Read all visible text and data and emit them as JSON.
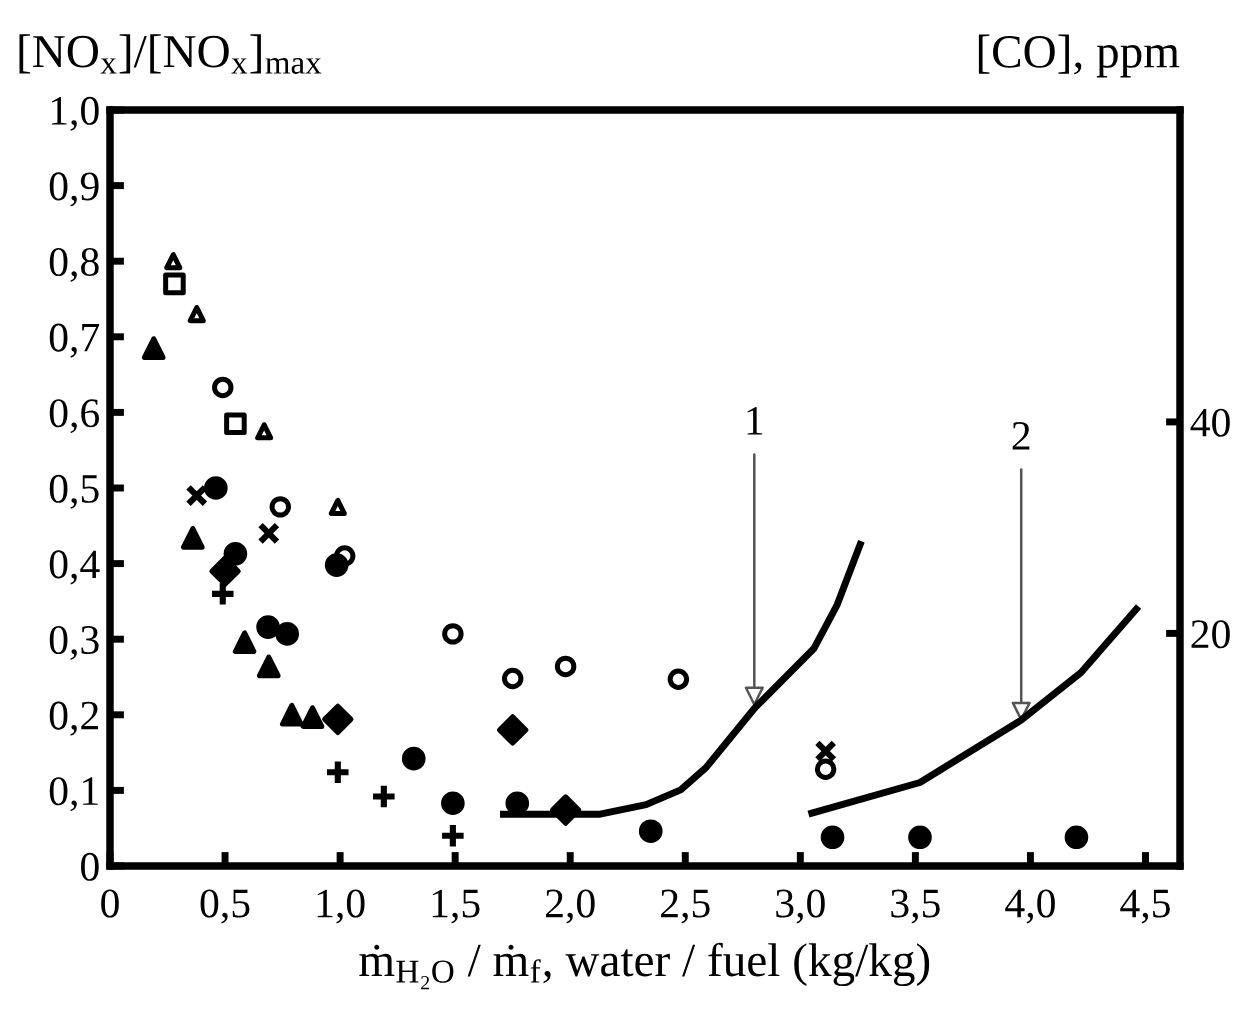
{
  "chart_data": {
    "type": "scatter",
    "ylabel": "[NO$_{x}$]/[NO$_{x}$]$_{max}$",
    "y2label": "[CO], ppm",
    "xlabel": "ṁ$_{H₂O}$ / ṁ$_{f}$, water / fuel (kg/kg)",
    "xlim": [
      0,
      4.65
    ],
    "ylim": [
      0,
      1.0
    ],
    "y2lim": [
      -2,
      69.5
    ],
    "xticks": [
      0,
      {
        "value": 0.5,
        "label": "0,5"
      },
      {
        "value": 1.0,
        "label": "1,0"
      },
      {
        "value": 1.5,
        "label": "1,5"
      },
      {
        "value": 2.0,
        "label": "2,0"
      },
      {
        "value": 2.5,
        "label": "2,5"
      },
      {
        "value": 3.0,
        "label": "3,0"
      },
      {
        "value": 3.5,
        "label": "3,5"
      },
      {
        "value": 4.0,
        "label": "4,0"
      },
      {
        "value": 4.5,
        "label": "4,5"
      }
    ],
    "yticks": [
      0,
      {
        "value": 0.1,
        "label": "0,1"
      },
      {
        "value": 0.2,
        "label": "0,2"
      },
      {
        "value": 0.3,
        "label": "0,3"
      },
      {
        "value": 0.4,
        "label": "0,4"
      },
      {
        "value": 0.5,
        "label": "0,5"
      },
      {
        "value": 0.6,
        "label": "0,6"
      },
      {
        "value": 0.7,
        "label": "0,7"
      },
      {
        "value": 0.8,
        "label": "0,8"
      },
      {
        "value": 0.9,
        "label": "0,9"
      },
      {
        "value": 1.0,
        "label": "1,0"
      }
    ],
    "y2ticks": [
      20,
      40
    ],
    "grid": false,
    "legend": false,
    "series": [
      {
        "marker": "triangle",
        "color": "#000000",
        "x": [
          0.275,
          0.377,
          0.67,
          0.99
        ],
        "values": [
          0.8,
          0.73,
          0.575,
          0.475
        ]
      },
      {
        "marker": "square",
        "color": "#000000",
        "x": [
          0.28,
          0.545
        ],
        "values": [
          0.77,
          0.585
        ]
      },
      {
        "marker": "triangle",
        "color": "#000000",
        "x": [
          0.19,
          0.36,
          0.585,
          0.69,
          0.79,
          0.88
        ],
        "values": [
          0.685,
          0.434,
          0.296,
          0.264,
          0.2,
          0.197
        ]
      },
      {
        "marker": "cross",
        "color": "#000000",
        "x": [
          0.377,
          0.69,
          3.11
        ],
        "values": [
          0.49,
          0.44,
          0.152
        ]
      },
      {
        "marker": "circle",
        "color": "#000000",
        "x": [
          0.49,
          0.74,
          1.02,
          1.49,
          1.75,
          1.98,
          2.47,
          3.11
        ],
        "values": [
          0.633,
          0.475,
          0.41,
          0.307,
          0.248,
          0.264,
          0.247,
          0.128
        ]
      },
      {
        "marker": "circle",
        "color": "#000000",
        "x": [
          0.46,
          0.545,
          0.687,
          0.77,
          0.985,
          1.32,
          1.49,
          1.77,
          2.35,
          3.14,
          3.52,
          4.2
        ],
        "values": [
          0.5,
          0.413,
          0.316,
          0.307,
          0.398,
          0.142,
          0.083,
          0.083,
          0.046,
          0.038,
          0.038,
          0.038
        ]
      },
      {
        "marker": "diamond",
        "color": "#000000",
        "x": [
          0.5,
          0.99,
          1.75,
          1.98
        ],
        "values": [
          0.39,
          0.194,
          0.18,
          0.074
        ]
      },
      {
        "marker": "cross",
        "color": "#000000",
        "x": [
          0.49,
          0.99,
          1.19,
          1.49
        ],
        "values": [
          0.36,
          0.124,
          0.092,
          0.04
        ]
      },
      {
        "type": "line",
        "axis": "y2",
        "color": "#000000",
        "x": [
          1.71,
          2.13,
          2.33,
          2.48,
          2.59,
          2.8,
          3.06,
          3.16,
          3.26
        ],
        "values": [
          2.9,
          2.9,
          3.8,
          5.2,
          7.3,
          12.9,
          18.6,
          22.7,
          28.4
        ]
      },
      {
        "type": "line",
        "axis": "y2",
        "color": "#000000",
        "x": [
          3.05,
          3.52,
          3.96,
          4.22,
          4.46
        ],
        "values": [
          3.0,
          5.9,
          11.8,
          16.3,
          22.3
        ]
      }
    ],
    "annotations": [
      {
        "text": "1",
        "x": 2.8,
        "y": 0.21
      },
      {
        "text": "2",
        "x": 3.96,
        "y": 0.19
      }
    ]
  }
}
